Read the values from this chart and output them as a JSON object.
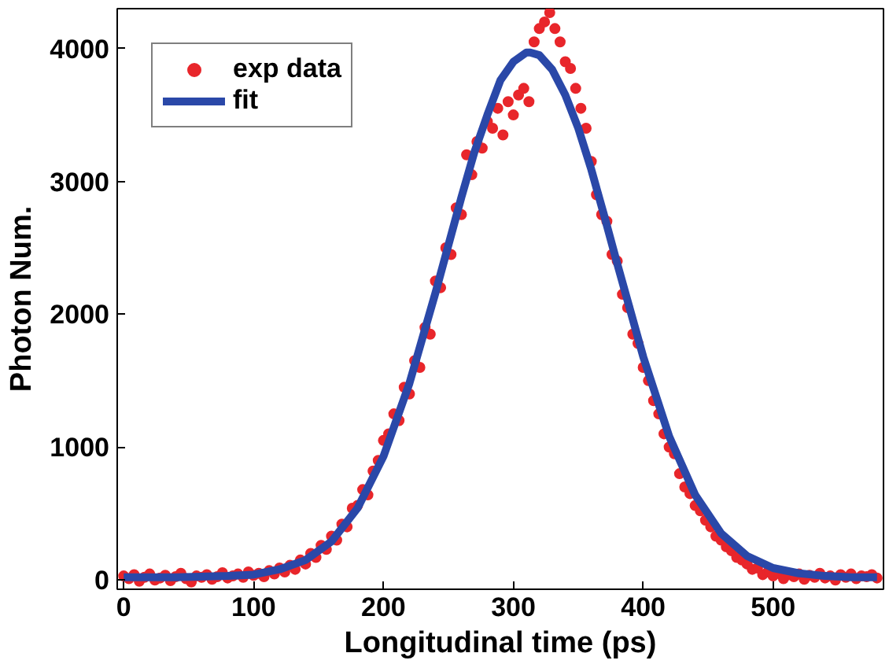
{
  "chart_data": {
    "type": "scatter",
    "xlabel": "Longitudinal time (ps)",
    "ylabel": "Photon Num.",
    "xlim": [
      -5,
      585
    ],
    "ylim": [
      -70,
      4300
    ],
    "xticks": [
      0,
      100,
      200,
      300,
      400,
      500
    ],
    "yticks": [
      0,
      1000,
      2000,
      3000,
      4000
    ],
    "grid": false,
    "legend": "top left",
    "series": [
      {
        "name": "exp data",
        "marker": "circle",
        "color": "#e8262b",
        "x": [
          0,
          4,
          8,
          12,
          16,
          20,
          24,
          28,
          32,
          36,
          40,
          44,
          48,
          52,
          56,
          60,
          64,
          68,
          72,
          76,
          80,
          84,
          88,
          92,
          96,
          100,
          104,
          108,
          112,
          116,
          120,
          124,
          128,
          132,
          136,
          140,
          144,
          148,
          152,
          156,
          160,
          164,
          168,
          172,
          176,
          180,
          184,
          188,
          192,
          196,
          200,
          204,
          208,
          212,
          216,
          220,
          224,
          228,
          232,
          236,
          240,
          244,
          248,
          252,
          256,
          260,
          264,
          268,
          272,
          276,
          280,
          284,
          288,
          292,
          296,
          300,
          304,
          308,
          312,
          316,
          320,
          324,
          328,
          332,
          336,
          340,
          344,
          348,
          352,
          356,
          360,
          364,
          368,
          372,
          376,
          380,
          384,
          388,
          392,
          396,
          400,
          404,
          408,
          412,
          416,
          420,
          424,
          428,
          432,
          436,
          440,
          444,
          448,
          452,
          456,
          460,
          464,
          468,
          472,
          476,
          480,
          484,
          488,
          492,
          496,
          500,
          504,
          508,
          512,
          516,
          520,
          524,
          528,
          532,
          536,
          540,
          544,
          548,
          552,
          556,
          560,
          564,
          568,
          572,
          576,
          580
        ],
        "values": [
          30,
          10,
          40,
          -10,
          20,
          45,
          0,
          15,
          35,
          -5,
          25,
          50,
          10,
          -15,
          30,
          20,
          40,
          5,
          25,
          55,
          15,
          30,
          45,
          20,
          60,
          35,
          50,
          25,
          70,
          45,
          90,
          60,
          110,
          80,
          150,
          120,
          200,
          170,
          260,
          230,
          330,
          300,
          420,
          400,
          540,
          560,
          680,
          640,
          820,
          900,
          1050,
          1100,
          1250,
          1200,
          1450,
          1400,
          1650,
          1600,
          1900,
          1850,
          2250,
          2200,
          2500,
          2450,
          2800,
          2750,
          3200,
          3050,
          3300,
          3250,
          3450,
          3400,
          3550,
          3350,
          3600,
          3500,
          3650,
          3700,
          3600,
          4050,
          4150,
          4200,
          4270,
          4150,
          4050,
          3900,
          3850,
          3700,
          3550,
          3400,
          3150,
          2900,
          2750,
          2700,
          2450,
          2400,
          2150,
          2050,
          1850,
          1780,
          1600,
          1500,
          1350,
          1250,
          1100,
          1000,
          950,
          800,
          700,
          650,
          560,
          520,
          450,
          400,
          330,
          300,
          250,
          220,
          170,
          150,
          120,
          80,
          90,
          40,
          60,
          30,
          50,
          10,
          40,
          25,
          45,
          5,
          35,
          20,
          50,
          15,
          30,
          0,
          40,
          20,
          45,
          10,
          30,
          25,
          40,
          15
        ]
      },
      {
        "name": "fit",
        "type": "line",
        "color": "#2a48a8",
        "line_style": "solid",
        "x": [
          0,
          40,
          80,
          100,
          120,
          140,
          160,
          180,
          200,
          220,
          240,
          260,
          270,
          280,
          290,
          300,
          310,
          313,
          320,
          330,
          340,
          350,
          360,
          370,
          380,
          400,
          420,
          440,
          460,
          480,
          500,
          520,
          540,
          560,
          580
        ],
        "values": [
          20,
          20,
          30,
          40,
          80,
          150,
          290,
          540,
          930,
          1480,
          2160,
          2880,
          3220,
          3500,
          3760,
          3900,
          3970,
          3970,
          3950,
          3840,
          3650,
          3400,
          3090,
          2740,
          2380,
          1680,
          1080,
          640,
          350,
          180,
          90,
          50,
          30,
          20,
          20
        ]
      }
    ]
  }
}
